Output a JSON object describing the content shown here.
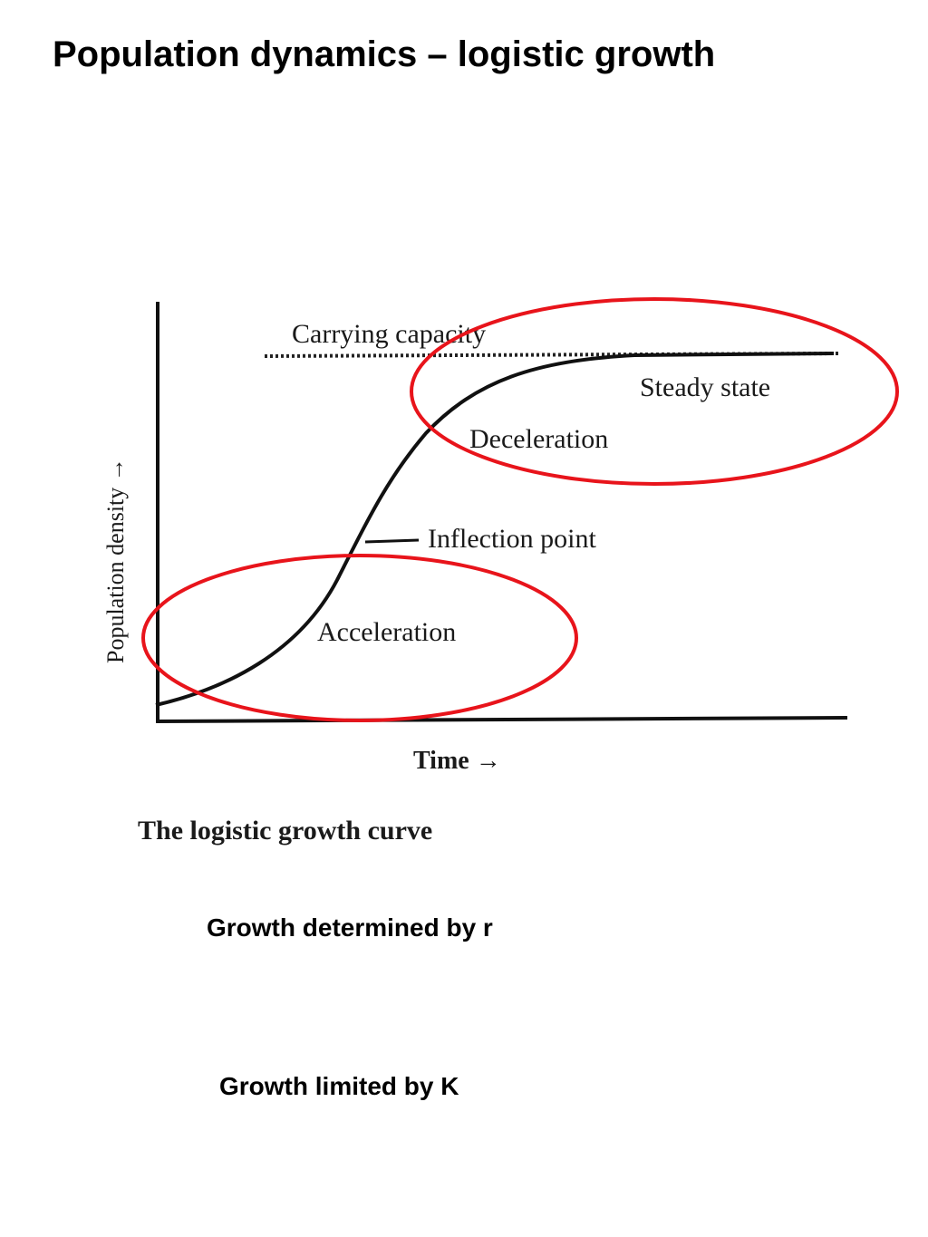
{
  "slide": {
    "title": "Population dynamics – logistic growth"
  },
  "figure": {
    "carrying_capacity_label": "Carrying capacity",
    "steady_state_label": "Steady state",
    "deceleration_label": "Deceleration",
    "inflection_label": "Inflection point",
    "acceleration_label": "Acceleration",
    "y_axis_label": "Population density →",
    "x_axis_label": "Time →",
    "caption": "The logistic growth curve",
    "highlight_color": "#e8141b"
  },
  "captions": {
    "growth_r": "Growth determined by  r",
    "growth_k": "Growth limited by K"
  }
}
